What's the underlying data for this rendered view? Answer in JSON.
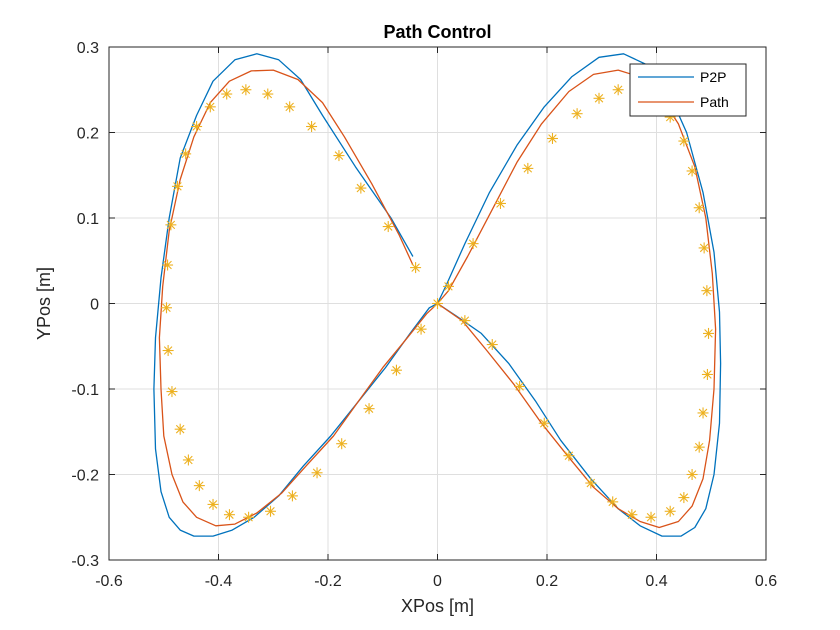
{
  "chart_data": {
    "type": "line",
    "title": "Path Control",
    "xlabel": "XPos [m]",
    "ylabel": "YPos [m]",
    "xlim": [
      -0.6,
      0.6
    ],
    "ylim": [
      -0.3,
      0.3
    ],
    "xticks": [
      -0.6,
      -0.4,
      -0.2,
      0,
      0.2,
      0.4,
      0.6
    ],
    "xtick_labels": [
      "-0.6",
      "-0.4",
      "-0.2",
      "0",
      "0.2",
      "0.4",
      "0.6"
    ],
    "yticks": [
      -0.3,
      -0.2,
      -0.1,
      0,
      0.1,
      0.2,
      0.3
    ],
    "ytick_labels": [
      "-0.3",
      "-0.2",
      "-0.1",
      "0",
      "0.1",
      "0.2",
      "0.3"
    ],
    "grid": true,
    "legend_position": "top-right",
    "series": [
      {
        "name": "P2P",
        "color": "#0072BD",
        "style": "line",
        "x": [
          -0.045,
          -0.085,
          -0.15,
          -0.21,
          -0.25,
          -0.29,
          -0.33,
          -0.37,
          -0.41,
          -0.44,
          -0.47,
          -0.49,
          -0.505,
          -0.515,
          -0.518,
          -0.515,
          -0.505,
          -0.49,
          -0.47,
          -0.445,
          -0.41,
          -0.375,
          -0.335,
          -0.29,
          -0.245,
          -0.195,
          -0.145,
          -0.095,
          -0.05,
          -0.015,
          0.0,
          0.015,
          0.05,
          0.095,
          0.145,
          0.195,
          0.245,
          0.295,
          0.34,
          0.38,
          0.42,
          0.455,
          0.485,
          0.505,
          0.515,
          0.517,
          0.515,
          0.505,
          0.49,
          0.47,
          0.445,
          0.41,
          0.37,
          0.33,
          0.28,
          0.225,
          0.18,
          0.13,
          0.08,
          0.035,
          0.0
        ],
        "y": [
          0.055,
          0.1,
          0.16,
          0.22,
          0.262,
          0.285,
          0.292,
          0.285,
          0.26,
          0.22,
          0.17,
          0.1,
          0.03,
          -0.04,
          -0.1,
          -0.17,
          -0.22,
          -0.25,
          -0.265,
          -0.272,
          -0.272,
          -0.265,
          -0.25,
          -0.225,
          -0.19,
          -0.155,
          -0.115,
          -0.075,
          -0.035,
          -0.005,
          0.0,
          0.02,
          0.07,
          0.13,
          0.185,
          0.23,
          0.265,
          0.288,
          0.292,
          0.28,
          0.25,
          0.2,
          0.13,
          0.06,
          -0.01,
          -0.07,
          -0.14,
          -0.2,
          -0.24,
          -0.262,
          -0.272,
          -0.272,
          -0.26,
          -0.24,
          -0.205,
          -0.16,
          -0.115,
          -0.07,
          -0.035,
          -0.015,
          0.0
        ]
      },
      {
        "name": "Path",
        "color": "#D95319",
        "style": "line",
        "x": [
          -0.045,
          -0.07,
          -0.12,
          -0.17,
          -0.21,
          -0.255,
          -0.3,
          -0.34,
          -0.38,
          -0.415,
          -0.445,
          -0.47,
          -0.49,
          -0.502,
          -0.508,
          -0.505,
          -0.5,
          -0.485,
          -0.465,
          -0.44,
          -0.405,
          -0.37,
          -0.33,
          -0.285,
          -0.24,
          -0.19,
          -0.145,
          -0.1,
          -0.055,
          -0.02,
          0.0,
          0.02,
          0.055,
          0.1,
          0.145,
          0.19,
          0.24,
          0.285,
          0.33,
          0.37,
          0.405,
          0.44,
          0.47,
          0.49,
          0.502,
          0.508,
          0.505,
          0.497,
          0.485,
          0.465,
          0.44,
          0.405,
          0.37,
          0.33,
          0.285,
          0.24,
          0.19,
          0.14,
          0.09,
          0.045,
          0.0
        ],
        "y": [
          0.045,
          0.08,
          0.14,
          0.195,
          0.235,
          0.262,
          0.273,
          0.272,
          0.26,
          0.235,
          0.195,
          0.145,
          0.085,
          0.02,
          -0.04,
          -0.1,
          -0.155,
          -0.2,
          -0.232,
          -0.25,
          -0.26,
          -0.258,
          -0.245,
          -0.222,
          -0.19,
          -0.155,
          -0.115,
          -0.075,
          -0.04,
          -0.012,
          0.0,
          0.015,
          0.055,
          0.11,
          0.165,
          0.21,
          0.248,
          0.268,
          0.273,
          0.265,
          0.245,
          0.21,
          0.16,
          0.1,
          0.035,
          -0.03,
          -0.1,
          -0.16,
          -0.205,
          -0.237,
          -0.255,
          -0.262,
          -0.255,
          -0.24,
          -0.215,
          -0.18,
          -0.14,
          -0.095,
          -0.055,
          -0.02,
          0.0
        ]
      },
      {
        "name": "",
        "color": "#EDB120",
        "style": "markers",
        "marker": "asterisk",
        "x": [
          -0.04,
          -0.09,
          -0.14,
          -0.18,
          -0.23,
          -0.27,
          -0.31,
          -0.35,
          -0.385,
          -0.415,
          -0.44,
          -0.46,
          -0.475,
          -0.487,
          -0.493,
          -0.495,
          -0.492,
          -0.485,
          -0.47,
          -0.455,
          -0.435,
          -0.41,
          -0.38,
          -0.345,
          -0.305,
          -0.265,
          -0.22,
          -0.175,
          -0.125,
          -0.075,
          -0.03,
          0.0,
          0.02,
          0.065,
          0.115,
          0.165,
          0.21,
          0.255,
          0.295,
          0.33,
          0.365,
          0.395,
          0.425,
          0.45,
          0.465,
          0.478,
          0.487,
          0.492,
          0.495,
          0.493,
          0.485,
          0.478,
          0.465,
          0.45,
          0.425,
          0.39,
          0.355,
          0.32,
          0.28,
          0.24,
          0.195,
          0.15,
          0.1,
          0.05
        ],
        "y": [
          0.042,
          0.09,
          0.135,
          0.173,
          0.207,
          0.23,
          0.245,
          0.25,
          0.245,
          0.23,
          0.207,
          0.175,
          0.137,
          0.092,
          0.045,
          -0.005,
          -0.055,
          -0.103,
          -0.147,
          -0.183,
          -0.213,
          -0.235,
          -0.247,
          -0.25,
          -0.243,
          -0.225,
          -0.198,
          -0.164,
          -0.123,
          -0.078,
          -0.03,
          0.0,
          0.02,
          0.07,
          0.117,
          0.158,
          0.193,
          0.222,
          0.24,
          0.25,
          0.245,
          0.235,
          0.218,
          0.19,
          0.155,
          0.112,
          0.065,
          0.015,
          -0.035,
          -0.083,
          -0.128,
          -0.168,
          -0.2,
          -0.227,
          -0.243,
          -0.25,
          -0.247,
          -0.232,
          -0.21,
          -0.178,
          -0.14,
          -0.097,
          -0.048,
          -0.02
        ]
      }
    ]
  }
}
